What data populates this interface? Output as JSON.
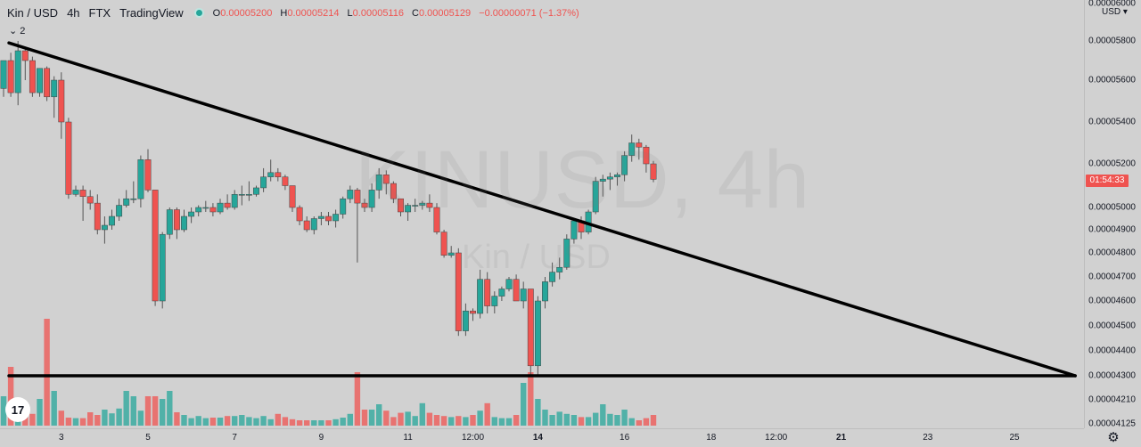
{
  "legend": {
    "symbol": "Kin / USD",
    "interval": "4h",
    "exchange": "FTX",
    "source": "TradingView",
    "open_label": "O",
    "open": "0.00005200",
    "high_label": "H",
    "high": "0.00005214",
    "low_label": "L",
    "low": "0.00005116",
    "close_label": "C",
    "close": "0.00005129",
    "change": "−0.00000071 (−1.37%)",
    "collapse_count": "2"
  },
  "watermark": {
    "main": "KINUSD, 4h",
    "sub": "Kin / USD"
  },
  "price_axis": {
    "currency": "USD",
    "ticks": [
      {
        "label": "0.00006000",
        "price": 6000
      },
      {
        "label": "0.00005800",
        "price": 5800
      },
      {
        "label": "0.00005600",
        "price": 5600
      },
      {
        "label": "0.00005400",
        "price": 5400
      },
      {
        "label": "0.00005200",
        "price": 5200
      },
      {
        "label": "0.00005000",
        "price": 5000
      },
      {
        "label": "0.00004900",
        "price": 4900
      },
      {
        "label": "0.00004800",
        "price": 4800
      },
      {
        "label": "0.00004700",
        "price": 4700
      },
      {
        "label": "0.00004600",
        "price": 4600
      },
      {
        "label": "0.00004500",
        "price": 4500
      },
      {
        "label": "0.00004400",
        "price": 4400
      },
      {
        "label": "0.00004300",
        "price": 4300
      },
      {
        "label": "0.00004210",
        "price": 4210
      },
      {
        "label": "0.00004125",
        "price": 4125
      }
    ],
    "countdown": "01:54:33"
  },
  "time_axis": {
    "ticks": [
      {
        "label": "3",
        "bar": 8,
        "bold": false
      },
      {
        "label": "5",
        "bar": 20,
        "bold": false
      },
      {
        "label": "7",
        "bar": 32,
        "bold": false
      },
      {
        "label": "9",
        "bar": 44,
        "bold": false
      },
      {
        "label": "11",
        "bar": 56,
        "bold": false
      },
      {
        "label": "12:00",
        "bar": 65,
        "bold": false
      },
      {
        "label": "14",
        "bar": 74,
        "bold": true
      },
      {
        "label": "16",
        "bar": 86,
        "bold": false
      },
      {
        "label": "18",
        "bar": 98,
        "bold": false
      },
      {
        "label": "12:00",
        "bar": 107,
        "bold": false
      },
      {
        "label": "21",
        "bar": 116,
        "bold": true
      },
      {
        "label": "23",
        "bar": 128,
        "bold": false
      },
      {
        "label": "25",
        "bar": 140,
        "bold": false
      }
    ]
  },
  "colors": {
    "up": "#26a69a",
    "down": "#ef5350",
    "background": "#d1d1d1",
    "trendline": "#000000"
  },
  "icons": {
    "logo": "tradingview-logo-icon",
    "settings": "gear-icon",
    "status": "market-open-dot-icon",
    "collapse": "chevron-down-icon"
  },
  "chart_data": {
    "type": "candlestick",
    "symbol": "KINUSD",
    "interval": "4h",
    "price_unit": "1e-8 USD",
    "candles": [
      [
        5560,
        5700,
        5520,
        5700
      ],
      [
        5700,
        5740,
        5520,
        5540
      ],
      [
        5540,
        5800,
        5480,
        5750
      ],
      [
        5750,
        5760,
        5600,
        5700
      ],
      [
        5700,
        5720,
        5520,
        5540
      ],
      [
        5540,
        5660,
        5520,
        5660
      ],
      [
        5660,
        5670,
        5500,
        5520
      ],
      [
        5520,
        5620,
        5420,
        5600
      ],
      [
        5600,
        5640,
        5320,
        5400
      ],
      [
        5400,
        5420,
        5040,
        5060
      ],
      [
        5060,
        5100,
        5050,
        5080
      ],
      [
        5080,
        5100,
        4940,
        5050
      ],
      [
        5050,
        5080,
        4990,
        5020
      ],
      [
        5020,
        5060,
        4880,
        4900
      ],
      [
        4900,
        4960,
        4840,
        4920
      ],
      [
        4920,
        4990,
        4900,
        4960
      ],
      [
        4960,
        5040,
        4940,
        5010
      ],
      [
        5010,
        5080,
        5000,
        5040
      ],
      [
        5040,
        5120,
        5020,
        5040
      ],
      [
        5040,
        5240,
        5000,
        5220
      ],
      [
        5220,
        5270,
        5070,
        5080
      ],
      [
        5080,
        5080,
        4580,
        4600
      ],
      [
        4600,
        4890,
        4570,
        4880
      ],
      [
        4880,
        5000,
        4860,
        4990
      ],
      [
        4990,
        5000,
        4860,
        4900
      ],
      [
        4900,
        4990,
        4890,
        4960
      ],
      [
        4960,
        5000,
        4930,
        4980
      ],
      [
        4980,
        5010,
        4960,
        5000
      ],
      [
        5000,
        5030,
        4980,
        5000
      ],
      [
        5000,
        5020,
        4960,
        4980
      ],
      [
        4980,
        5040,
        4970,
        5020
      ],
      [
        5020,
        5060,
        4990,
        5000
      ],
      [
        5000,
        5080,
        4990,
        5060
      ],
      [
        5060,
        5100,
        5010,
        5060
      ],
      [
        5060,
        5120,
        5030,
        5060
      ],
      [
        5060,
        5100,
        5050,
        5090
      ],
      [
        5090,
        5180,
        5070,
        5140
      ],
      [
        5140,
        5220,
        5120,
        5160
      ],
      [
        5160,
        5180,
        5120,
        5140
      ],
      [
        5140,
        5150,
        5080,
        5100
      ],
      [
        5100,
        5100,
        4980,
        5000
      ],
      [
        5000,
        5010,
        4920,
        4940
      ],
      [
        4940,
        4960,
        4890,
        4900
      ],
      [
        4900,
        4960,
        4880,
        4950
      ],
      [
        4950,
        4980,
        4920,
        4960
      ],
      [
        4960,
        4980,
        4920,
        4940
      ],
      [
        4940,
        4990,
        4910,
        4970
      ],
      [
        4970,
        5050,
        4950,
        5040
      ],
      [
        5040,
        5100,
        5020,
        5080
      ],
      [
        5080,
        5090,
        4760,
        5020
      ],
      [
        5020,
        5040,
        4980,
        5000
      ],
      [
        5000,
        5110,
        4980,
        5080
      ],
      [
        5080,
        5180,
        5040,
        5150
      ],
      [
        5150,
        5170,
        5060,
        5110
      ],
      [
        5110,
        5120,
        5020,
        5040
      ],
      [
        5040,
        5040,
        4960,
        4980
      ],
      [
        4980,
        5020,
        4940,
        5010
      ],
      [
        5010,
        5040,
        4980,
        5010
      ],
      [
        5010,
        5030,
        4990,
        5020
      ],
      [
        5020,
        5060,
        4980,
        5000
      ],
      [
        5000,
        5020,
        4880,
        4890
      ],
      [
        4890,
        4900,
        4780,
        4790
      ],
      [
        4790,
        4830,
        4780,
        4800
      ],
      [
        4800,
        4820,
        4460,
        4480
      ],
      [
        4480,
        4590,
        4460,
        4560
      ],
      [
        4560,
        4570,
        4520,
        4550
      ],
      [
        4550,
        4730,
        4530,
        4690
      ],
      [
        4690,
        4720,
        4550,
        4580
      ],
      [
        4580,
        4640,
        4550,
        4620
      ],
      [
        4620,
        4660,
        4600,
        4650
      ],
      [
        4650,
        4700,
        4640,
        4690
      ],
      [
        4690,
        4710,
        4600,
        4600
      ],
      [
        4600,
        4680,
        4570,
        4650
      ],
      [
        4650,
        4650,
        4300,
        4340
      ],
      [
        4340,
        4620,
        4300,
        4600
      ],
      [
        4600,
        4700,
        4570,
        4680
      ],
      [
        4680,
        4760,
        4660,
        4720
      ],
      [
        4720,
        4780,
        4690,
        4740
      ],
      [
        4740,
        4880,
        4730,
        4860
      ],
      [
        4860,
        4950,
        4840,
        4940
      ],
      [
        4940,
        4960,
        4860,
        4890
      ],
      [
        4890,
        4990,
        4880,
        4980
      ],
      [
        4980,
        5140,
        4970,
        5120
      ],
      [
        5120,
        5150,
        5050,
        5130
      ],
      [
        5130,
        5160,
        5080,
        5140
      ],
      [
        5140,
        5160,
        5100,
        5150
      ],
      [
        5150,
        5260,
        5120,
        5240
      ],
      [
        5240,
        5340,
        5210,
        5300
      ],
      [
        5300,
        5320,
        5220,
        5280
      ],
      [
        5280,
        5290,
        5160,
        5200
      ],
      [
        5200,
        5214,
        5116,
        5129
      ]
    ],
    "volumes": [
      55,
      110,
      48,
      40,
      22,
      50,
      200,
      65,
      28,
      15,
      14,
      14,
      25,
      20,
      30,
      23,
      32,
      65,
      55,
      28,
      55,
      55,
      50,
      65,
      25,
      20,
      14,
      18,
      14,
      15,
      15,
      18,
      18,
      20,
      16,
      14,
      18,
      12,
      22,
      16,
      12,
      10,
      10,
      10,
      10,
      10,
      12,
      15,
      22,
      100,
      30,
      30,
      40,
      28,
      16,
      24,
      26,
      18,
      42,
      24,
      20,
      18,
      16,
      18,
      16,
      20,
      28,
      42,
      16,
      14,
      14,
      20,
      80,
      100,
      50,
      30,
      20,
      26,
      22,
      20,
      16,
      16,
      24,
      40,
      22,
      20,
      30,
      14,
      10,
      14,
      20
    ],
    "trendlines": [
      {
        "name": "descending-resistance",
        "from": {
          "bar": 0,
          "price": 5790
        },
        "to": {
          "bar": 142,
          "price": 4300
        }
      },
      {
        "name": "horizontal-support",
        "from": {
          "bar": 0,
          "price": 4300
        },
        "to": {
          "bar": 142,
          "price": 4300
        }
      }
    ]
  }
}
